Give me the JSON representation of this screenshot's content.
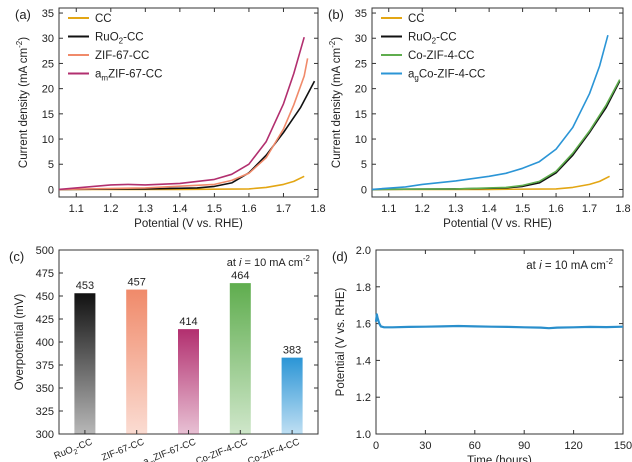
{
  "colors": {
    "cc": "#e3a614",
    "ruo2": "#111111",
    "zif67": "#f08a6a",
    "amzif67": "#b22f6f",
    "cozif4": "#5fad4e",
    "agcozif4": "#2b95d6",
    "stability": "#2a8fcc"
  },
  "chart_data": [
    {
      "panel": "(a)",
      "type": "line",
      "xlabel": "Potential (V vs. RHE)",
      "ylabel": "Current density (mA cm",
      "ylabel_sup": "-2",
      "xlim": [
        1.05,
        1.8
      ],
      "ylim": [
        -1.5,
        36
      ],
      "xticks": [
        1.1,
        1.2,
        1.3,
        1.4,
        1.5,
        1.6,
        1.7,
        1.8
      ],
      "yticks": [
        0,
        5,
        10,
        15,
        20,
        25,
        30,
        35
      ],
      "legend_position": "top-left",
      "series": [
        {
          "key": "cc",
          "name": "CC",
          "name_main": "CC",
          "name_sub": "",
          "name_rest": "",
          "color_key": "cc",
          "x": [
            1.05,
            1.2,
            1.4,
            1.6,
            1.65,
            1.7,
            1.73,
            1.76
          ],
          "y": [
            0,
            0,
            0,
            0.1,
            0.4,
            1.0,
            1.6,
            2.6
          ]
        },
        {
          "key": "ruo2",
          "name": "RuO2-CC",
          "name_main": "RuO",
          "name_sub": "2",
          "name_rest": "-CC",
          "color_key": "ruo2",
          "x": [
            1.05,
            1.3,
            1.45,
            1.5,
            1.55,
            1.6,
            1.65,
            1.7,
            1.75,
            1.79
          ],
          "y": [
            0,
            0.1,
            0.3,
            0.6,
            1.3,
            3.3,
            6.8,
            11.3,
            16.3,
            21.5
          ]
        },
        {
          "key": "zif67",
          "name": "ZIF-67-CC",
          "name_main": "ZIF-67-CC",
          "name_sub": "",
          "name_rest": "",
          "color_key": "zif67",
          "x": [
            1.05,
            1.3,
            1.5,
            1.55,
            1.6,
            1.65,
            1.7,
            1.73,
            1.76,
            1.77
          ],
          "y": [
            0,
            0.3,
            1.0,
            1.8,
            3.2,
            6.3,
            12.0,
            16.8,
            22.5,
            26.0
          ]
        },
        {
          "key": "amzif67",
          "name": "amZIF-67-CC",
          "name_main": "a",
          "name_sub": "m",
          "name_rest": "ZIF-67-CC",
          "color_key": "amzif67",
          "x": [
            1.05,
            1.15,
            1.2,
            1.25,
            1.3,
            1.4,
            1.5,
            1.55,
            1.6,
            1.65,
            1.7,
            1.73,
            1.76
          ],
          "y": [
            0,
            0.6,
            0.9,
            1.0,
            0.9,
            1.2,
            2.0,
            3.0,
            5.0,
            9.5,
            17.0,
            23.0,
            30.2
          ]
        }
      ]
    },
    {
      "panel": "(b)",
      "type": "line",
      "xlabel": "Potential (V vs. RHE)",
      "ylabel": "Current density (mA cm",
      "ylabel_sup": "-2",
      "xlim": [
        1.05,
        1.8
      ],
      "ylim": [
        -1.5,
        36
      ],
      "xticks": [
        1.1,
        1.2,
        1.3,
        1.4,
        1.5,
        1.6,
        1.7,
        1.8
      ],
      "yticks": [
        0,
        5,
        10,
        15,
        20,
        25,
        30,
        35
      ],
      "legend_position": "top-left",
      "series": [
        {
          "key": "cc",
          "name": "CC",
          "name_main": "CC",
          "name_sub": "",
          "name_rest": "",
          "color_key": "cc",
          "x": [
            1.05,
            1.2,
            1.4,
            1.6,
            1.65,
            1.7,
            1.73,
            1.76
          ],
          "y": [
            0,
            0,
            0,
            0.1,
            0.4,
            1.0,
            1.6,
            2.6
          ]
        },
        {
          "key": "ruo2",
          "name": "RuO2-CC",
          "name_main": "RuO",
          "name_sub": "2",
          "name_rest": "-CC",
          "color_key": "ruo2",
          "x": [
            1.05,
            1.3,
            1.45,
            1.5,
            1.55,
            1.6,
            1.65,
            1.7,
            1.75,
            1.79
          ],
          "y": [
            0,
            0.1,
            0.3,
            0.6,
            1.3,
            3.3,
            6.8,
            11.3,
            16.3,
            21.5
          ]
        },
        {
          "key": "cozif4",
          "name": "Co-ZIF-4-CC",
          "name_main": "Co-ZIF-4-CC",
          "name_sub": "",
          "name_rest": "",
          "color_key": "cozif4",
          "x": [
            1.05,
            1.3,
            1.45,
            1.5,
            1.55,
            1.6,
            1.65,
            1.7,
            1.75,
            1.79
          ],
          "y": [
            0,
            0.1,
            0.4,
            0.8,
            1.6,
            3.6,
            7.2,
            11.6,
            16.8,
            21.8
          ]
        },
        {
          "key": "agcozif4",
          "name": "agCo-ZIF-4-CC",
          "name_main": "a",
          "name_sub": "g",
          "name_rest": "Co-ZIF-4-CC",
          "color_key": "agcozif4",
          "x": [
            1.05,
            1.15,
            1.2,
            1.3,
            1.4,
            1.45,
            1.5,
            1.55,
            1.6,
            1.65,
            1.7,
            1.73,
            1.755
          ],
          "y": [
            0,
            0.5,
            1.0,
            1.7,
            2.6,
            3.2,
            4.2,
            5.5,
            8.0,
            12.3,
            19.0,
            24.5,
            30.6
          ]
        }
      ]
    },
    {
      "panel": "(c)",
      "type": "bar",
      "ylabel": "Overpotential (mV)",
      "ylim": [
        300,
        500
      ],
      "yticks": [
        300,
        325,
        350,
        375,
        400,
        425,
        450,
        475,
        500
      ],
      "annotation_pre": "at ",
      "annotation_i": "i",
      "annotation_post": " = 10 mA cm",
      "annotation_sup": "-2",
      "categories": [
        {
          "main": "RuO",
          "sub": "2",
          "rest": "-CC",
          "color_key": "ruo2"
        },
        {
          "main": "ZIF-67-CC",
          "sub": "",
          "rest": "",
          "color_key": "zif67"
        },
        {
          "main": "a",
          "sub": "m",
          "rest": "ZIF-67-CC",
          "color_key": "amzif67"
        },
        {
          "main": "Co-ZIF-4-CC",
          "sub": "",
          "rest": "",
          "color_key": "cozif4"
        },
        {
          "main": "a",
          "sub": "g",
          "rest": "Co-ZIF-4-CC",
          "color_key": "agcozif4"
        }
      ],
      "values": [
        453,
        457,
        414,
        464,
        383
      ],
      "value_labels": [
        "453",
        "457",
        "414",
        "464",
        "383"
      ]
    },
    {
      "panel": "(d)",
      "type": "line",
      "xlabel": "Time (hours)",
      "ylabel": "Potential (V vs. RHE)",
      "xlim": [
        0,
        150
      ],
      "ylim": [
        1.0,
        2.0
      ],
      "xticks": [
        0,
        30,
        60,
        90,
        120,
        150
      ],
      "yticks": [
        1.0,
        1.2,
        1.4,
        1.6,
        1.8,
        2.0
      ],
      "annotation_pre": "at ",
      "annotation_i": "i",
      "annotation_post": " = 10 mA cm",
      "annotation_sup": "-2",
      "series": [
        {
          "key": "stability",
          "color_key": "stability",
          "x": [
            0,
            0.5,
            1,
            2,
            3,
            5,
            10,
            20,
            30,
            40,
            50,
            60,
            70,
            80,
            90,
            100,
            105,
            110,
            120,
            130,
            140,
            150
          ],
          "y": [
            1.61,
            1.65,
            1.63,
            1.6,
            1.585,
            1.58,
            1.58,
            1.582,
            1.583,
            1.585,
            1.587,
            1.585,
            1.583,
            1.582,
            1.58,
            1.578,
            1.575,
            1.578,
            1.58,
            1.582,
            1.581,
            1.583
          ]
        }
      ]
    }
  ]
}
